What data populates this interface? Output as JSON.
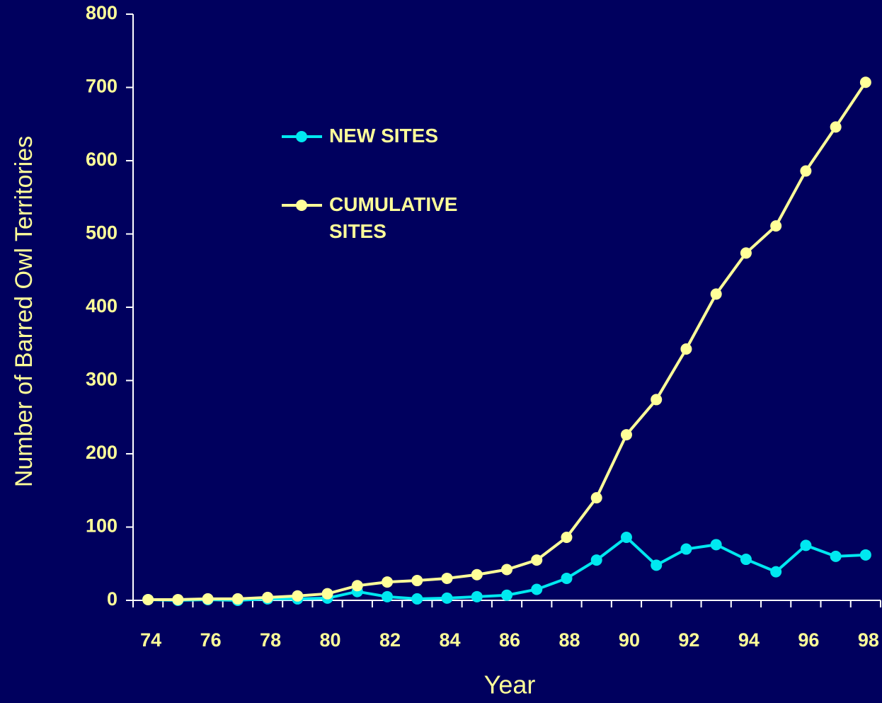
{
  "chart_data": {
    "type": "line",
    "x_label": "Year",
    "y_label": "Number of Barred Owl Territories",
    "categories": [
      "74",
      null,
      "76",
      null,
      "78",
      null,
      "80",
      null,
      "82",
      null,
      "84",
      null,
      "86",
      null,
      "88",
      null,
      "90",
      null,
      "92",
      null,
      "94",
      null,
      "96",
      null,
      "98"
    ],
    "series": [
      {
        "name": "NEW SITES",
        "color": "#00e8f0",
        "values": [
          1,
          0,
          1,
          0,
          2,
          2,
          3,
          12,
          5,
          2,
          3,
          5,
          7,
          15,
          30,
          55,
          86,
          48,
          70,
          76,
          56,
          39,
          75,
          60,
          62
        ]
      },
      {
        "name": "CUMULATIVE SITES",
        "color": "#ffff99",
        "values": [
          1,
          1,
          2,
          2,
          4,
          6,
          9,
          20,
          25,
          27,
          30,
          35,
          42,
          55,
          86,
          140,
          226,
          274,
          343,
          418,
          474,
          511,
          586,
          646,
          707
        ]
      }
    ],
    "ylim": [
      0,
      800
    ],
    "yticks": [
      0,
      100,
      200,
      300,
      400,
      500,
      600,
      700,
      800
    ],
    "grid": false,
    "legend": "upper-left"
  }
}
